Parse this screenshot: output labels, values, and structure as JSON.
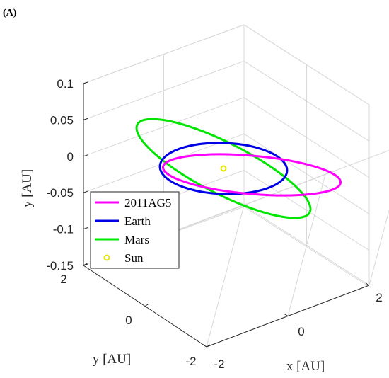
{
  "panel_label": "(A)",
  "chart_data": {
    "type": "line3d",
    "title": "",
    "axes": {
      "vertical": {
        "label": "y [AU]",
        "ticks": [
          "0.1",
          "0.05",
          "0",
          "-0.05",
          "-0.1",
          "-0.15"
        ]
      },
      "depth": {
        "label": "y [AU]",
        "ticks": [
          "2",
          "0",
          "-2"
        ]
      },
      "horizontal": {
        "label": "x [AU]",
        "ticks": [
          "-2",
          "0",
          "2"
        ]
      }
    },
    "grid": true,
    "legend": {
      "placement": "bottom-left",
      "entries": [
        {
          "label": "2011AG5",
          "color": "#ff00ff",
          "style": "line"
        },
        {
          "label": "Earth",
          "color": "#0000e6",
          "style": "line"
        },
        {
          "label": "Mars",
          "color": "#00e600",
          "style": "line"
        },
        {
          "label": "Sun",
          "color": "#e6e600",
          "style": "marker"
        }
      ]
    },
    "series": [
      {
        "color": "#00e600",
        "orbit": {
          "cx": 0.0,
          "cy": 0.0,
          "semi_major_au": 1.52,
          "semi_minor_au": 0.4,
          "tilt_deg": -27
        }
      },
      {
        "color": "#0000e6",
        "orbit": {
          "cx": 0.0,
          "cy": 0.0,
          "semi_major_au": 1.0,
          "semi_minor_au": 0.4,
          "tilt_deg": -2
        }
      },
      {
        "color": "#ff00ff",
        "orbit": {
          "cx": 0.4,
          "cy": -0.03,
          "semi_major_au": 1.4,
          "semi_minor_au": 0.3,
          "tilt_deg": -5
        }
      }
    ],
    "sun": {
      "color": "#e6e600",
      "x": 0.0,
      "y": 0.0
    }
  }
}
